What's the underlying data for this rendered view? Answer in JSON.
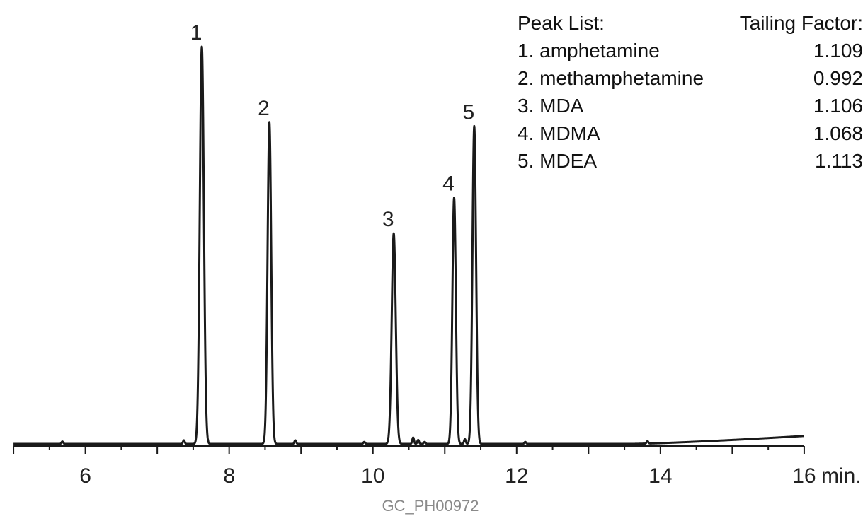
{
  "chart_data": {
    "type": "line",
    "title": "",
    "xlabel": "",
    "ylabel": "",
    "x_unit": "min.",
    "xlim": [
      4.95,
      16.05
    ],
    "ylim": [
      0,
      100
    ],
    "grid": false,
    "x_ticks_major": [
      6,
      8,
      10,
      12,
      14,
      16
    ],
    "x_tick_labels": [
      "6",
      "8",
      "10",
      "12",
      "14",
      "16"
    ],
    "x_ticks_minor_step": 0.5,
    "line_color": "#1a1a1a",
    "peaks": [
      {
        "label": "1",
        "rt": 7.62,
        "height": 100,
        "width": 0.028
      },
      {
        "label": "2",
        "rt": 8.56,
        "height": 81,
        "width": 0.025
      },
      {
        "label": "3",
        "rt": 10.29,
        "height": 53,
        "width": 0.028
      },
      {
        "label": "4",
        "rt": 11.13,
        "height": 62,
        "width": 0.024
      },
      {
        "label": "5",
        "rt": 11.41,
        "height": 80,
        "width": 0.025
      }
    ],
    "minor_peaks": [
      {
        "rt": 5.68,
        "height": 0.6
      },
      {
        "rt": 7.37,
        "height": 0.9
      },
      {
        "rt": 8.92,
        "height": 0.9
      },
      {
        "rt": 9.88,
        "height": 0.5
      },
      {
        "rt": 10.56,
        "height": 1.6
      },
      {
        "rt": 10.63,
        "height": 1.0
      },
      {
        "rt": 10.72,
        "height": 0.5
      },
      {
        "rt": 11.28,
        "height": 1.2
      },
      {
        "rt": 12.12,
        "height": 0.5
      },
      {
        "rt": 13.82,
        "height": 0.6
      }
    ],
    "baseline_drift": {
      "start": 13.6,
      "end": 16.0,
      "rise": 2.0
    }
  },
  "legend": {
    "header_left": "Peak List:",
    "header_right": "Tailing Factor:",
    "rows": [
      {
        "name": "1. amphetamine",
        "value": "1.109"
      },
      {
        "name": "2. methamphetamine",
        "value": "0.992"
      },
      {
        "name": "3. MDA",
        "value": "1.106"
      },
      {
        "name": "4. MDMA",
        "value": "1.068"
      },
      {
        "name": "5. MDEA",
        "value": "1.113"
      }
    ]
  },
  "footer": {
    "code": "GC_PH00972"
  }
}
